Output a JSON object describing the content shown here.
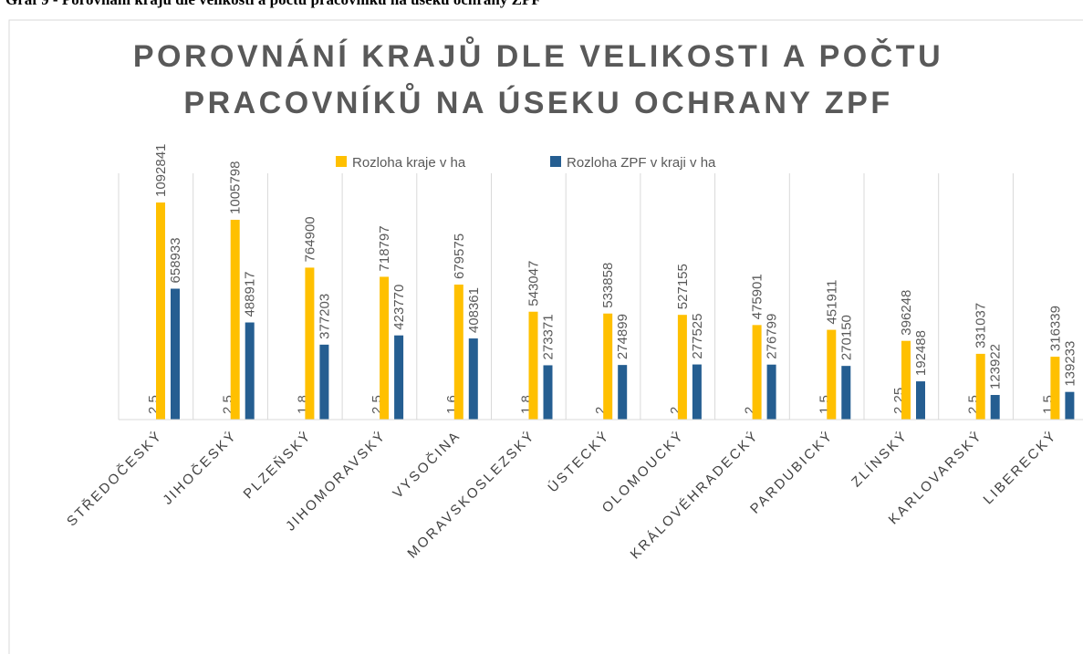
{
  "caption": "Graf 9 - Porovnání krajů dle velikosti a počtu pracovníků na úseku ochrany ZPF",
  "chart_data": {
    "type": "bar",
    "title": [
      "POROVNÁNÍ KRAJŮ DLE VELIKOSTI A POČTU",
      "PRACOVNÍKŮ NA ÚSEKU OCHRANY ZPF"
    ],
    "categories": [
      "STŘEDOČESKÝ",
      "JIHOČESKÝ",
      "PLZEŇSKÝ",
      "JIHOMORAVSKÝ",
      "VYSOČINA",
      "MORAVSKOSLEZSKÝ",
      "ÚSTECKÝ",
      "OLOMOUCKÝ",
      "KRÁLOVÉHRADECKÝ",
      "PARDUBICKÝ",
      "ZLÍNSKÝ",
      "KARLOVARSKÝ",
      "LIBERECKÝ"
    ],
    "series": [
      {
        "values": [
          2.5,
          2.5,
          1.8,
          2.5,
          1.6,
          1.8,
          2,
          2,
          2,
          1.5,
          2.25,
          2.5,
          1.5
        ],
        "value_labels": [
          "2,5",
          "2,5",
          "1,8",
          "2,5",
          "1,6",
          "1,8",
          "2",
          "2",
          "2",
          "1,5",
          "2,25",
          "2,5",
          "1,5"
        ]
      },
      {
        "name": "Rozloha kraje v ha",
        "color": "#ffc000",
        "values": [
          1092841,
          1005798,
          764900,
          718797,
          679575,
          543047,
          533858,
          527155,
          475901,
          451911,
          396248,
          331037,
          316339
        ]
      },
      {
        "name": "Rozloha ZPF v kraji v ha",
        "color": "#255e91",
        "values": [
          658933,
          488917,
          377203,
          423770,
          408361,
          273371,
          274899,
          277525,
          276799,
          270150,
          192488,
          123922,
          139233
        ]
      }
    ]
  }
}
